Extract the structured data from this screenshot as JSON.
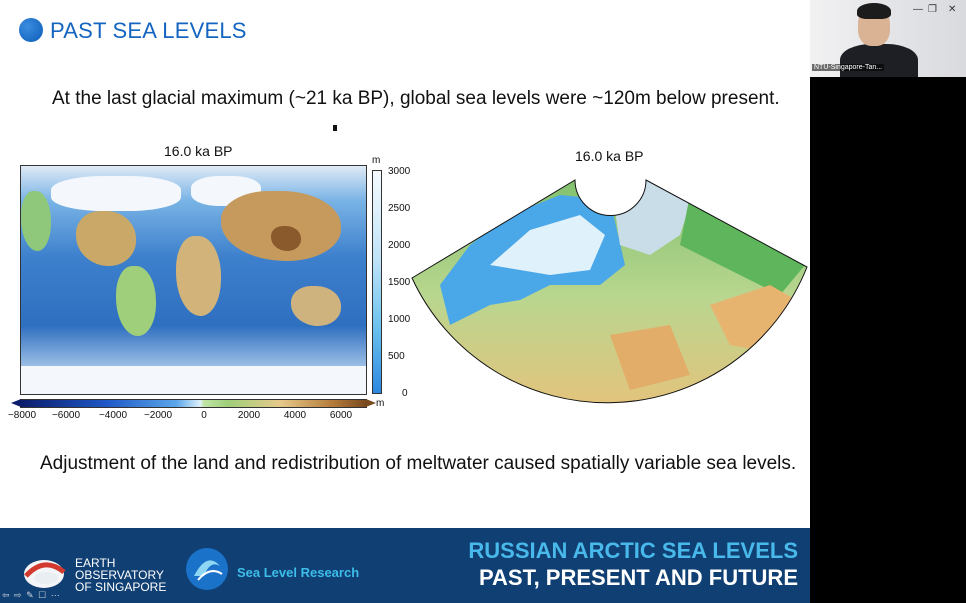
{
  "header": {
    "title": "PAST SEA LEVELS"
  },
  "text": {
    "line1": "At the last glacial maximum (~21 ka BP), global sea levels were ~120m below present.",
    "line2": "Adjustment of the land and redistribution of meltwater caused spatially variable sea levels."
  },
  "maps": {
    "left_title": "16.0 ka BP",
    "right_title": "16.0 ka BP",
    "vbar_unit": "m",
    "vbar_ticks": [
      "3000",
      "2500",
      "2000",
      "1500",
      "1000",
      "500",
      "0"
    ],
    "hbar_unit": "m",
    "hbar_ticks": [
      "−8000",
      "−6000",
      "−4000",
      "−2000",
      "0",
      "2000",
      "4000",
      "6000"
    ]
  },
  "footer": {
    "eos_line1": "EARTH",
    "eos_line2": "OBSERVATORY",
    "eos_line3": "OF SINGAPORE",
    "slr": "Sea Level Research",
    "title1": "RUSSIAN ARCTIC SEA LEVELS",
    "title2": "PAST, PRESENT AND FUTURE",
    "controls": "⇦ ⇨ ✎ ☐ ⋯"
  },
  "video": {
    "participant": "NTU-Singapore-Tan..."
  }
}
